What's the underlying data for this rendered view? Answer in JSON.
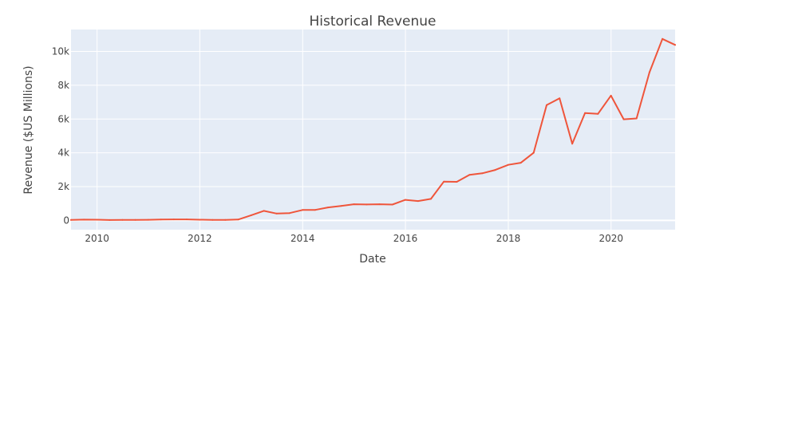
{
  "chart_data": {
    "type": "line",
    "title": "Historical Revenue",
    "xlabel": "Date",
    "ylabel": "Revenue ($US Millions)",
    "xlim": [
      "2009-06-30",
      "2021-03-31"
    ],
    "ylim": [
      -550,
      11300
    ],
    "grid": true,
    "x_ticks": [
      {
        "value": "2010-01-01",
        "label": "2010"
      },
      {
        "value": "2012-01-01",
        "label": "2012"
      },
      {
        "value": "2014-01-01",
        "label": "2014"
      },
      {
        "value": "2016-01-01",
        "label": "2016"
      },
      {
        "value": "2018-01-01",
        "label": "2018"
      },
      {
        "value": "2020-01-01",
        "label": "2020"
      }
    ],
    "y_ticks": [
      {
        "value": 0,
        "label": "0"
      },
      {
        "value": 2000,
        "label": "2k"
      },
      {
        "value": 4000,
        "label": "4k"
      },
      {
        "value": 6000,
        "label": "6k"
      },
      {
        "value": 8000,
        "label": "8k"
      },
      {
        "value": 10000,
        "label": "10k"
      }
    ],
    "colors": {
      "line": "#ef553b",
      "plot_bg": "#e5ecf6",
      "grid": "#ffffff",
      "text": "#444444"
    },
    "series": [
      {
        "x": [
          "2009-06-30",
          "2009-09-30",
          "2009-12-31",
          "2010-03-31",
          "2010-06-30",
          "2010-09-30",
          "2010-12-31",
          "2011-03-31",
          "2011-06-30",
          "2011-09-30",
          "2011-12-31",
          "2012-03-31",
          "2012-06-30",
          "2012-09-30",
          "2012-12-31",
          "2013-03-31",
          "2013-06-30",
          "2013-09-30",
          "2013-12-31",
          "2014-03-31",
          "2014-06-30",
          "2014-09-30",
          "2014-12-31",
          "2015-03-31",
          "2015-06-30",
          "2015-09-30",
          "2015-12-31",
          "2016-03-31",
          "2016-06-30",
          "2016-09-30",
          "2016-12-31",
          "2017-03-31",
          "2017-06-30",
          "2017-09-30",
          "2017-12-31",
          "2018-03-31",
          "2018-06-30",
          "2018-09-30",
          "2018-12-31",
          "2019-03-31",
          "2019-06-30",
          "2019-09-30",
          "2019-12-31",
          "2020-03-31",
          "2020-06-30",
          "2020-09-30",
          "2020-12-31",
          "2021-03-31"
        ],
        "values": [
          27,
          46,
          39,
          21,
          28,
          31,
          36,
          49,
          58,
          58,
          39,
          30,
          27,
          50,
          306,
          562,
          405,
          431,
          615,
          621,
          769,
          852,
          956,
          940,
          955,
          937,
          1214,
          1147,
          1270,
          2298,
          2285,
          2696,
          2790,
          2985,
          3288,
          3409,
          4002,
          6824,
          7226,
          4541,
          6350,
          6303,
          7384,
          5985,
          6036,
          8771,
          10744,
          10389
        ]
      }
    ]
  }
}
